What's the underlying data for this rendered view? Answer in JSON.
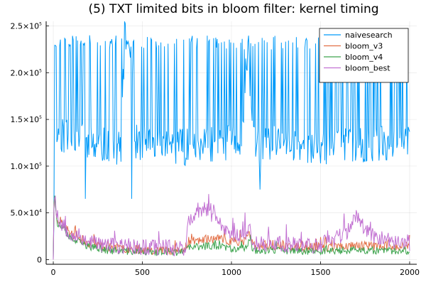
{
  "chart_data": {
    "type": "line",
    "title": "(5) TXT limited bits in bloom filter: kernel timing",
    "xlabel": "",
    "ylabel": "",
    "xlim": [
      -40,
      2040
    ],
    "ylim": [
      -5000,
      255000
    ],
    "x_ticks": [
      0,
      500,
      1000,
      1500,
      2000
    ],
    "x_tick_labels": [
      "0",
      "500",
      "1000",
      "1500",
      "2000"
    ],
    "y_ticks": [
      0,
      50000,
      100000,
      150000,
      200000,
      250000
    ],
    "y_tick_labels": [
      {
        "mantissa": "0",
        "exp": ""
      },
      {
        "mantissa": "5.0×10",
        "exp": "4"
      },
      {
        "mantissa": "1.0×10",
        "exp": "5"
      },
      {
        "mantissa": "1.5×10",
        "exp": "5"
      },
      {
        "mantissa": "2.0×10",
        "exp": "5"
      },
      {
        "mantissa": "2.5×10",
        "exp": "5"
      }
    ],
    "grid": true,
    "legend": {
      "position": "top-right"
    },
    "x": {
      "start": 0,
      "end": 2000,
      "step": 4
    },
    "series": [
      {
        "name": "naivesearch",
        "color": "#009af9",
        "profile": [
          [
            0,
            0
          ],
          [
            8,
            110000
          ],
          [
            20,
            135000
          ],
          [
            200,
            125000
          ],
          [
            380,
            120000
          ],
          [
            400,
            235000
          ],
          [
            440,
            235000
          ],
          [
            450,
            125000
          ],
          [
            760,
            120000
          ],
          [
            1060,
            125000
          ],
          [
            1080,
            210000
          ],
          [
            1100,
            210000
          ],
          [
            1120,
            125000
          ],
          [
            1600,
            120000
          ],
          [
            2000,
            125000
          ]
        ],
        "low_band": 95000,
        "high_band": 240000,
        "noise": 20000,
        "spike_prob": 0.3,
        "dips": [
          [
            180,
            65000
          ],
          [
            440,
            65000
          ],
          [
            1160,
            75000
          ]
        ],
        "seed": 11
      },
      {
        "name": "bloom_v3",
        "color": "#e26f46",
        "profile": [
          [
            0,
            0
          ],
          [
            5,
            70000
          ],
          [
            20,
            45000
          ],
          [
            100,
            27000
          ],
          [
            200,
            18000
          ],
          [
            300,
            13000
          ],
          [
            400,
            12000
          ],
          [
            600,
            10000
          ],
          [
            740,
            10000
          ],
          [
            760,
            20000
          ],
          [
            900,
            22000
          ],
          [
            1000,
            20000
          ],
          [
            1080,
            20000
          ],
          [
            1100,
            30000
          ],
          [
            1120,
            15000
          ],
          [
            1300,
            14000
          ],
          [
            1500,
            13000
          ],
          [
            1700,
            15000
          ],
          [
            2000,
            14000
          ]
        ],
        "noise": 5000,
        "spike_prob": 0.05,
        "dips": [],
        "seed": 23
      },
      {
        "name": "bloom_v4",
        "color": "#3da44e",
        "profile": [
          [
            0,
            0
          ],
          [
            5,
            75000
          ],
          [
            20,
            40000
          ],
          [
            100,
            22000
          ],
          [
            200,
            14000
          ],
          [
            300,
            10000
          ],
          [
            400,
            9000
          ],
          [
            600,
            8000
          ],
          [
            740,
            8000
          ],
          [
            760,
            13000
          ],
          [
            900,
            15000
          ],
          [
            1000,
            12000
          ],
          [
            1080,
            12000
          ],
          [
            1100,
            22000
          ],
          [
            1120,
            10000
          ],
          [
            1500,
            9000
          ],
          [
            1700,
            10000
          ],
          [
            2000,
            9000
          ]
        ],
        "noise": 4000,
        "spike_prob": 0.05,
        "dips": [],
        "seed": 37
      },
      {
        "name": "bloom_best",
        "color": "#c271d2",
        "profile": [
          [
            0,
            0
          ],
          [
            5,
            80000
          ],
          [
            20,
            45000
          ],
          [
            100,
            28000
          ],
          [
            200,
            20000
          ],
          [
            300,
            15000
          ],
          [
            400,
            14000
          ],
          [
            600,
            13000
          ],
          [
            740,
            13000
          ],
          [
            760,
            40000
          ],
          [
            850,
            55000
          ],
          [
            950,
            35000
          ],
          [
            1000,
            28000
          ],
          [
            1080,
            28000
          ],
          [
            1100,
            32000
          ],
          [
            1120,
            18000
          ],
          [
            1300,
            16000
          ],
          [
            1500,
            15000
          ],
          [
            1650,
            30000
          ],
          [
            1700,
            45000
          ],
          [
            1750,
            35000
          ],
          [
            1800,
            25000
          ],
          [
            1900,
            20000
          ],
          [
            2000,
            18000
          ]
        ],
        "noise": 9000,
        "spike_prob": 0.08,
        "dips": [],
        "seed": 53
      }
    ]
  }
}
